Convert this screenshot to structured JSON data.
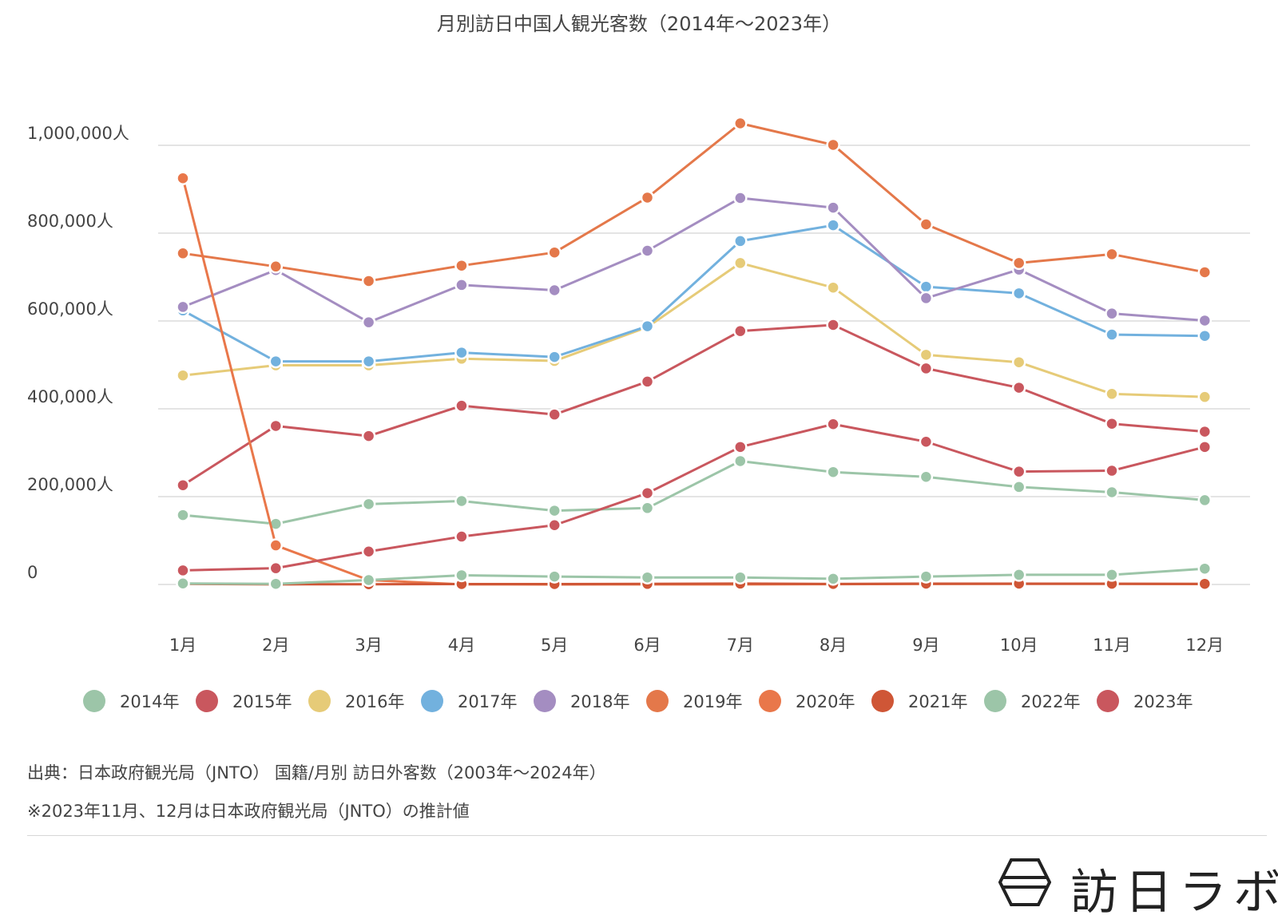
{
  "chart_data": {
    "type": "line",
    "title": "月別訪日中国人観光客数（2014年〜2023年）",
    "categories": [
      "1月",
      "2月",
      "3月",
      "4月",
      "5月",
      "6月",
      "7月",
      "8月",
      "9月",
      "10月",
      "11月",
      "12月"
    ],
    "yticks": [
      {
        "value": 0,
        "label": "0"
      },
      {
        "value": 200000,
        "label": "200,000人"
      },
      {
        "value": 400000,
        "label": "400,000人"
      },
      {
        "value": 600000,
        "label": "600,000人"
      },
      {
        "value": 800000,
        "label": "800,000人"
      },
      {
        "value": 1000000,
        "label": "1,000,000人"
      }
    ],
    "ylim": [
      0,
      1000000
    ],
    "grid": true,
    "legend_position": "bottom",
    "series": [
      {
        "name": "2014年",
        "color": "#9cc5a8",
        "values": [
          158000,
          138000,
          183000,
          190000,
          168000,
          174000,
          281000,
          256000,
          245000,
          222000,
          210000,
          192000
        ]
      },
      {
        "name": "2015年",
        "color": "#c9575e",
        "values": [
          226000,
          361000,
          338000,
          407000,
          387000,
          462000,
          577000,
          591000,
          492000,
          448000,
          366000,
          348000
        ]
      },
      {
        "name": "2016年",
        "color": "#e6cb78",
        "values": [
          476000,
          499000,
          499000,
          514000,
          509000,
          586000,
          732000,
          676000,
          523000,
          506000,
          434000,
          427000
        ]
      },
      {
        "name": "2017年",
        "color": "#72b1de",
        "values": [
          624000,
          508000,
          508000,
          528000,
          518000,
          588000,
          782000,
          818000,
          678000,
          663000,
          569000,
          566000
        ]
      },
      {
        "name": "2018年",
        "color": "#a48dc1",
        "values": [
          632000,
          716000,
          597000,
          682000,
          670000,
          760000,
          880000,
          858000,
          652000,
          717000,
          617000,
          601000
        ]
      },
      {
        "name": "2019年",
        "color": "#e4784a",
        "values": [
          754000,
          724000,
          691000,
          726000,
          756000,
          881000,
          1050000,
          1001000,
          820000,
          732000,
          752000,
          711000
        ]
      },
      {
        "name": "2020年",
        "color": "#e9774a",
        "values": [
          925000,
          89000,
          10000,
          300,
          100,
          300,
          300,
          700,
          1100,
          1300,
          1500,
          800
        ]
      },
      {
        "name": "2021年",
        "color": "#cf5636",
        "values": [
          1500,
          300,
          500,
          900,
          1000,
          1300,
          2000,
          1200,
          1800,
          1900,
          1700,
          1400
        ]
      },
      {
        "name": "2022年",
        "color": "#9cc5a8",
        "values": [
          2300,
          1400,
          10000,
          21000,
          18000,
          16000,
          16000,
          13000,
          18000,
          22000,
          22000,
          36000
        ]
      },
      {
        "name": "2023年",
        "color": "#c9575e",
        "values": [
          32000,
          37000,
          75000,
          109000,
          135000,
          208000,
          313000,
          365000,
          325000,
          257000,
          259000,
          313000
        ]
      }
    ]
  },
  "source_note": "出典：日本政府観光局（JNTO） 国籍/月別 訪日外客数（2003年〜2024年）",
  "footnote": "※2023年11月、12月は日本政府観光局（JNTO）の推計値",
  "brand": {
    "name": "訪日ラボ"
  }
}
